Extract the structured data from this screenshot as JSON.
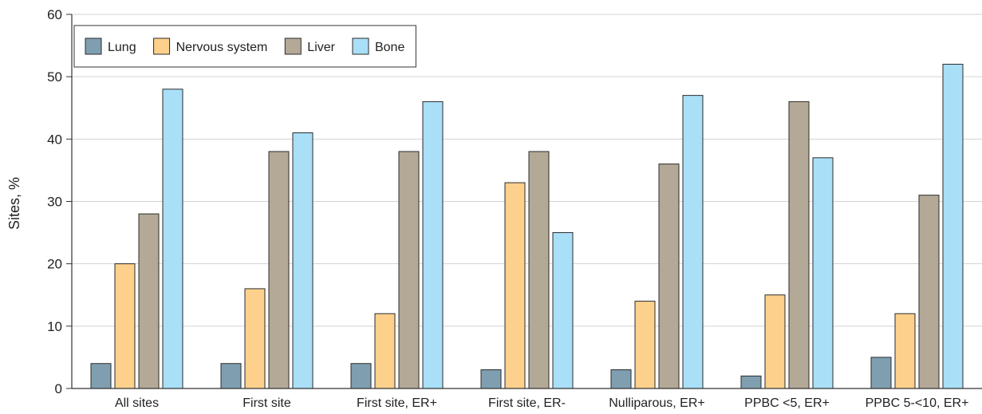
{
  "chart_data": {
    "type": "bar",
    "ylabel": "Sites, %",
    "xlabel": "",
    "ylim": [
      0,
      60
    ],
    "yticks": [
      0,
      10,
      20,
      30,
      40,
      50,
      60
    ],
    "grid": "horizontal",
    "legend_position": "top-left",
    "categories": [
      "All sites",
      "First site",
      "First site, ER+",
      "First site, ER-",
      "Nulliparous, ER+",
      "PPBC <5, ER+",
      "PPBC 5-<10, ER+"
    ],
    "series": [
      {
        "name": "Lung",
        "color": "#7f9fb0",
        "values": [
          4,
          4,
          4,
          3,
          3,
          2,
          5
        ]
      },
      {
        "name": "Nervous system",
        "color": "#fdd08c",
        "values": [
          20,
          16,
          12,
          33,
          14,
          15,
          12
        ]
      },
      {
        "name": "Liver",
        "color": "#b3a996",
        "values": [
          28,
          38,
          38,
          38,
          36,
          46,
          31
        ]
      },
      {
        "name": "Bone",
        "color": "#a9dff7",
        "values": [
          48,
          41,
          46,
          25,
          47,
          37,
          52
        ]
      }
    ]
  }
}
